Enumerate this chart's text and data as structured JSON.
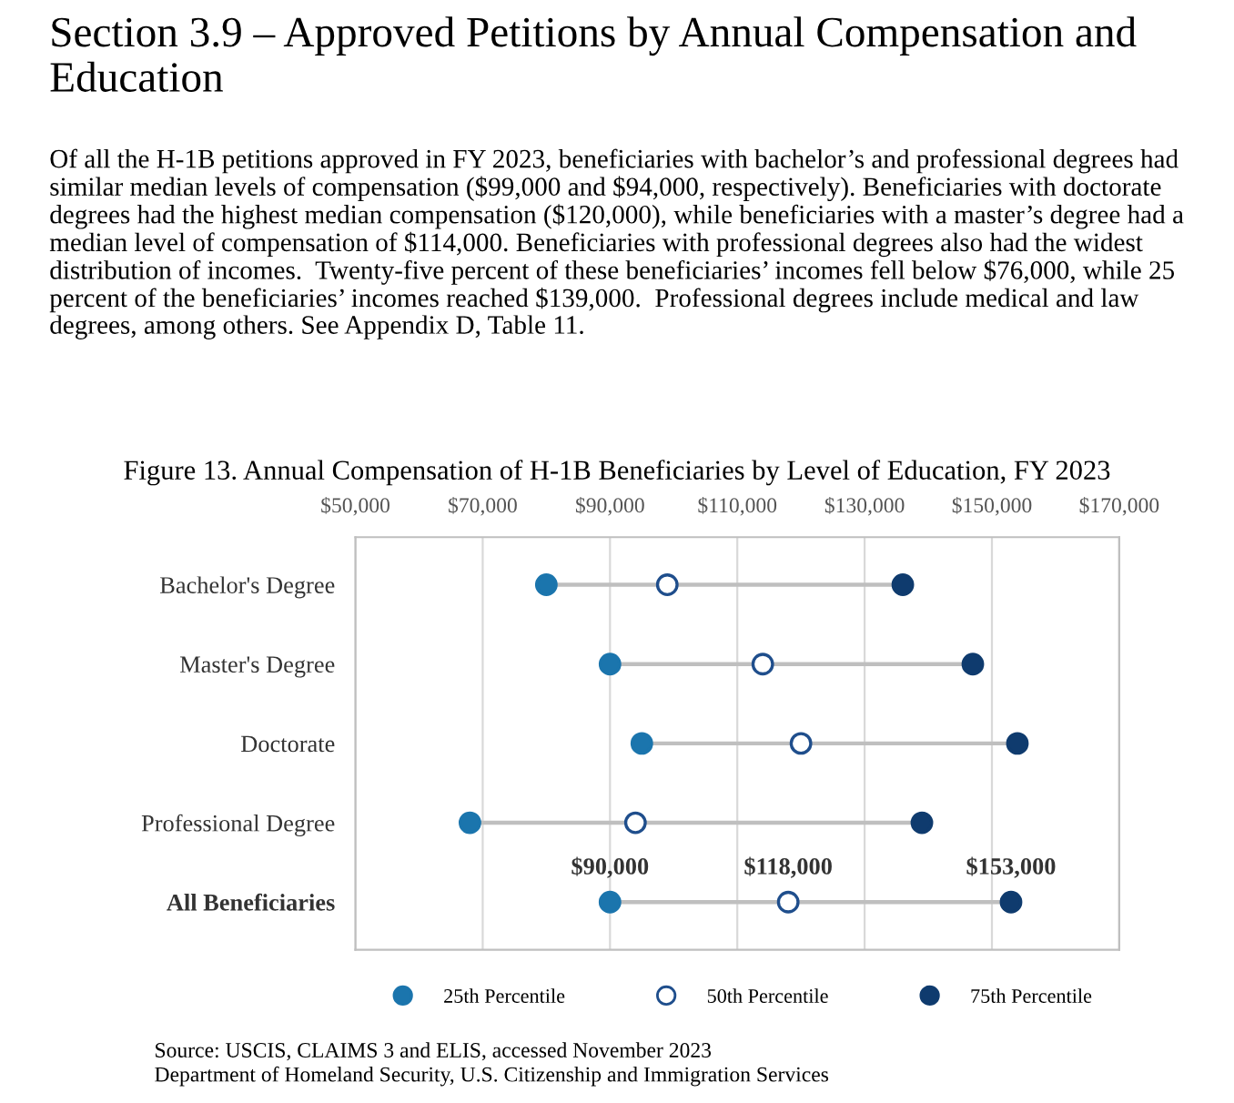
{
  "chart_data": {
    "type": "scatter",
    "orientation": "horizontal",
    "title": "Figure 13. Annual Compensation of H-1B Beneficiaries by Level of Education, FY 2023",
    "annotations": [
      "Section 3.9 – Approved Petitions by Annual Compensation and Education",
      "Of all the H-1B petitions approved in FY 2023, beneficiaries with bachelor’s and professional degrees had similar median levels of compensation ($99,000 and $94,000, respectively). Beneficiaries with doctorate degrees had the highest median compensation ($120,000), while beneficiaries with a master’s degree had a median level of compensation of $114,000. Beneficiaries with professional degrees also had the widest distribution of incomes.  Twenty-five percent of these beneficiaries’ incomes fell below $76,000, while 25 percent of the beneficiaries’ incomes reached $139,000.  Professional degrees include medical and law degrees, among others. See Appendix D, Table 11.",
      "Source: USCIS, CLAIMS 3 and ELIS, accessed November 2023\nDepartment of Homeland Security, U.S. Citizenship and Immigration Services"
    ],
    "categories": [
      "Bachelor's Degree",
      "Master's Degree",
      "Doctorate",
      "Professional Degree",
      "All Beneficiaries"
    ],
    "series": [
      {
        "name": "25th Percentile",
        "color": "#1b75ad",
        "values": [
          80000,
          90000,
          95000,
          68000,
          90000
        ],
        "value_labels": [
          null,
          null,
          null,
          null,
          "$90,000"
        ]
      },
      {
        "name": "50th Percentile",
        "color": "#1f4e8c",
        "values": [
          99000,
          114000,
          120000,
          94000,
          118000
        ],
        "value_labels": [
          null,
          null,
          null,
          null,
          "$118,000"
        ]
      },
      {
        "name": "75th Percentile",
        "color": "#0f3b6e",
        "values": [
          136000,
          147000,
          154000,
          139000,
          153000
        ],
        "value_labels": [
          null,
          null,
          null,
          null,
          "$153,000"
        ]
      }
    ],
    "xlim": [
      50000,
      170000
    ],
    "xticks": [
      {
        "value": 50000,
        "label": "$50,000"
      },
      {
        "value": 70000,
        "label": "$70,000"
      },
      {
        "value": 90000,
        "label": "$90,000"
      },
      {
        "value": 110000,
        "label": "$110,000"
      },
      {
        "value": 130000,
        "label": "$130,000"
      },
      {
        "value": 150000,
        "label": "$150,000"
      },
      {
        "value": 170000,
        "label": "$170,000"
      }
    ],
    "grid": "x",
    "legend": "bottom",
    "marker": "circle"
  }
}
